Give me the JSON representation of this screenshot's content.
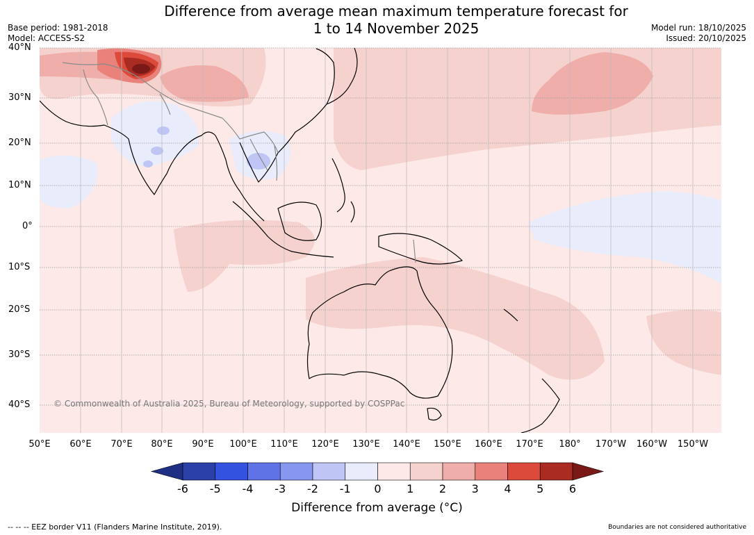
{
  "title_line1": "Difference from average mean maximum temperature forecast for",
  "title_line2": "1 to 14 November 2025",
  "base_period": "Base period: 1981-2018",
  "model": "Model: ACCESS-S2",
  "model_run": "Model run: 18/10/2025",
  "issued": "Issued: 20/10/2025",
  "lat_labels": [
    "40°N",
    "30°N",
    "20°N",
    "10°N",
    "0°",
    "10°S",
    "20°S",
    "30°S",
    "40°S"
  ],
  "lon_labels": [
    "50°E",
    "60°E",
    "70°E",
    "80°E",
    "90°E",
    "100°E",
    "110°E",
    "120°E",
    "130°E",
    "140°E",
    "150°E",
    "160°E",
    "170°E",
    "180°",
    "170°W",
    "160°W",
    "150°W"
  ],
  "copyright": "© Commonwealth of Australia 2025, Bureau of Meteorology, supported by COSPPac",
  "colorbar": {
    "ticks": [
      "-6",
      "-5",
      "-4",
      "-3",
      "-2",
      "-1",
      "0",
      "1",
      "2",
      "3",
      "4",
      "5",
      "6"
    ],
    "colors": [
      "#2a3fa8",
      "#3352e0",
      "#5f72e6",
      "#8796ee",
      "#bfc6f6",
      "#e9ecfb",
      "#fce9e8",
      "#f6d2cf",
      "#efaeaa",
      "#e8827b",
      "#dc4a3c",
      "#aa2b22"
    ],
    "under_color": "#1f2f84",
    "over_color": "#7a1a16",
    "label": "Difference from average (°C)"
  },
  "eez_note": "--  --  -- EEZ border V11 (Flanders Marine Institute, 2019).",
  "disclaimer": "Boundaries are not considered authoritative"
}
